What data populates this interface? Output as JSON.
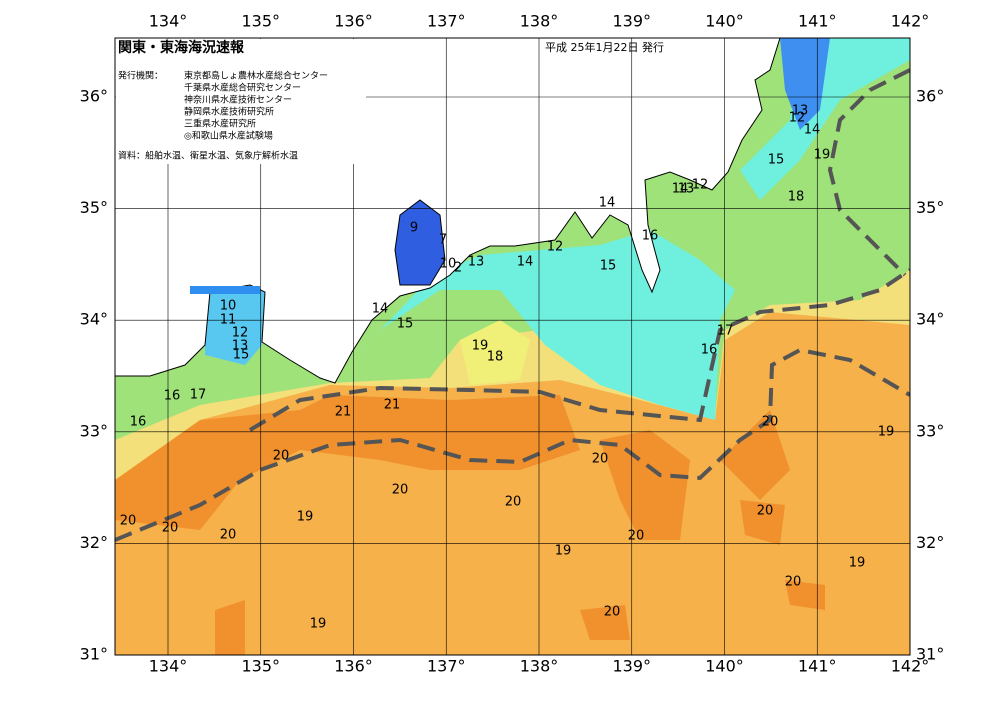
{
  "map": {
    "title": "関東・東海海況速報",
    "date": "平成 25年1月22日 発行",
    "agencies_label": "発行機関：",
    "agencies": [
      "東京都島しょ農林水産総合センター",
      "千葉県水産総合研究センター",
      "神奈川県水産技術センター",
      "静岡県水産技術研究所",
      "三重県水産研究所",
      "◎和歌山県水産試験場"
    ],
    "source": "資料：船舶水温、衛星水温、気象庁解析水温",
    "lon_labels": [
      "134°",
      "135°",
      "136°",
      "137°",
      "138°",
      "139°",
      "140°",
      "141°",
      "142°"
    ],
    "lat_labels": [
      "36°",
      "35°",
      "34°",
      "33°",
      "32°",
      "31°"
    ],
    "contour_labels": [
      13,
      12,
      14,
      15,
      19,
      18,
      14,
      12,
      13,
      16,
      14,
      15,
      14,
      12,
      13,
      10,
      2,
      9,
      7,
      14,
      15,
      19,
      18,
      17,
      16,
      10,
      11,
      12,
      13,
      15,
      16,
      17,
      16,
      21,
      21,
      20,
      20,
      20,
      20,
      20,
      20,
      19,
      20,
      20,
      20,
      19,
      20,
      19,
      20,
      20,
      19,
      19
    ]
  }
}
